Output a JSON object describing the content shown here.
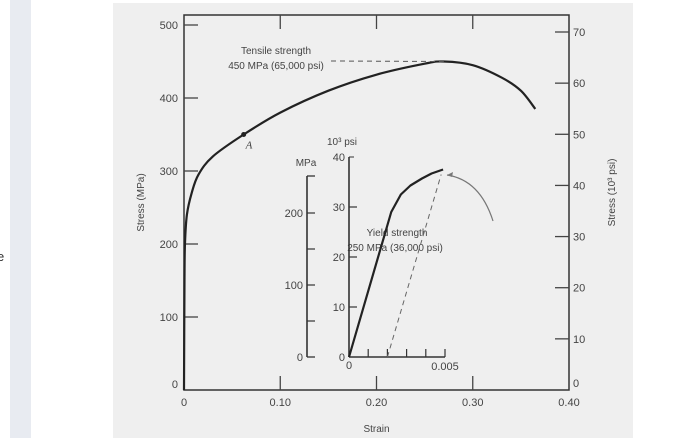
{
  "page": {
    "side_text": "e"
  },
  "chart_data": {
    "type": "line",
    "xlabel": "Strain",
    "ylabel": "Stress (MPa)",
    "ylabel_right": "Stress (10³ psi)",
    "xlim": [
      0,
      0.4
    ],
    "ylim": [
      0,
      500
    ],
    "ylim_right": [
      0,
      70
    ],
    "x_ticks": [
      "0",
      "0.10",
      "0.20",
      "0.30",
      "0.40"
    ],
    "y_ticks": [
      "0",
      "100",
      "200",
      "300",
      "400",
      "500"
    ],
    "y_right_ticks": [
      "0",
      "10",
      "20",
      "30",
      "40",
      "50",
      "60",
      "70"
    ],
    "grid": false,
    "series": [
      {
        "name": "stress-strain",
        "points": [
          [
            0,
            0
          ],
          [
            0.0005,
            150
          ],
          [
            0.001,
            200
          ],
          [
            0.003,
            240
          ],
          [
            0.008,
            270
          ],
          [
            0.015,
            295
          ],
          [
            0.03,
            320
          ],
          [
            0.062,
            350
          ],
          [
            0.1,
            380
          ],
          [
            0.15,
            410
          ],
          [
            0.2,
            432
          ],
          [
            0.25,
            447
          ],
          [
            0.27,
            450
          ],
          [
            0.3,
            445
          ],
          [
            0.33,
            428
          ],
          [
            0.35,
            410
          ],
          [
            0.365,
            385
          ]
        ]
      }
    ],
    "annotations": [
      {
        "label": "A",
        "x": 0.062,
        "y": 350
      },
      {
        "line1": "Tensile strength",
        "line2": "450 MPa (65,000 psi)",
        "x": 0.27,
        "y": 450
      },
      {
        "line1": "Yield strength",
        "line2": "250 MPa (36,000 psi)"
      }
    ],
    "inset": {
      "xlim": [
        0,
        0.005
      ],
      "ylim_psi": [
        0,
        40
      ],
      "ylim_mpa": [
        0,
        275
      ],
      "x_ticks": [
        "0",
        "0.005"
      ],
      "y_psi_ticks": [
        "0",
        "10",
        "20",
        "30",
        "40"
      ],
      "y_mpa_ticks": [
        "0",
        "100",
        "200"
      ],
      "unit_psi": "10³ psi",
      "unit_mpa": "MPa",
      "points": [
        [
          0,
          0
        ],
        [
          0.0022,
          29
        ],
        [
          0.0027,
          32.5
        ],
        [
          0.0032,
          34.3
        ],
        [
          0.0038,
          35.7
        ],
        [
          0.0043,
          36.7
        ],
        [
          0.0049,
          37.5
        ]
      ],
      "offset_line": [
        [
          0.002,
          0
        ],
        [
          0.0048,
          36.5
        ]
      ]
    }
  }
}
